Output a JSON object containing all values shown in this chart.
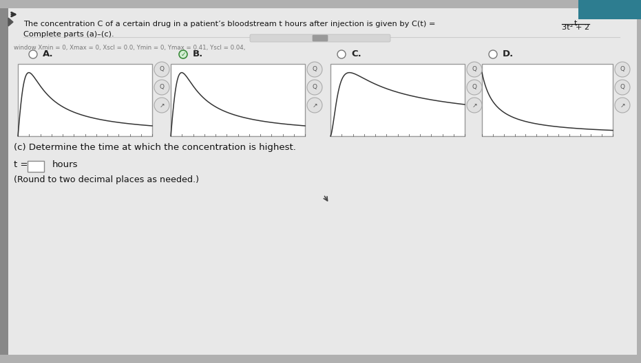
{
  "bg_outer": "#b0b0b0",
  "bg_page": "#e8e8e8",
  "bg_white_panel": "#f2f2f2",
  "teal_color": "#2d7d90",
  "title_line1": "The concentration C of a certain drug in a patient’s bloodstream t hours after injection is given by C(t) =",
  "formula_top": "t",
  "formula_bottom": "3t² + 2",
  "subtitle": "Complete parts (a)–(c).",
  "window_text": "window Xmin = 0, Xmax = 0, Xscl = 0.0, Ymin = 0, Ymax = 0.41, Yscl = 0.04,",
  "options": [
    "A.",
    "B.",
    "C.",
    "D."
  ],
  "selected_option": 1,
  "part_c": "(c) Determine the time at which the concentration is highest.",
  "t_label": "t =",
  "hours_label": "hours",
  "round_note": "(Round to two decimal places as needed.)",
  "graph_border": "#999999",
  "curve_color": "#333333",
  "btn_border": "#aaaaaa",
  "btn_fill": "#e0e0e0",
  "check_green": "#3a8a3a"
}
